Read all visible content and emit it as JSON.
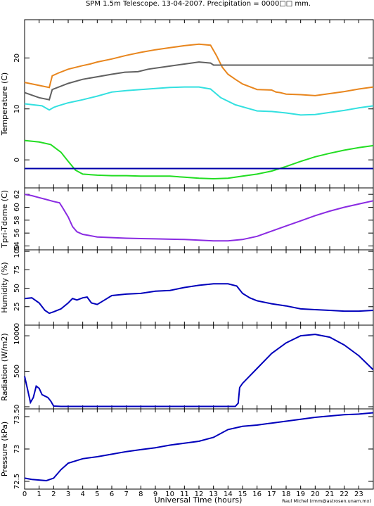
{
  "title": "SPM 1.5m Telescope. 13-04-2007. Precipitation = 0000□□ mm.",
  "xlabel": "Universal Time (hours)",
  "credit": "Raul Michel (rmm@astrosen.unam.mx)",
  "x_ticks": [
    "0",
    "1",
    "2",
    "3",
    "4",
    "5",
    "6",
    "7",
    "8",
    "9",
    "10",
    "11",
    "12",
    "13",
    "14",
    "15",
    "16",
    "17",
    "18",
    "19",
    "20",
    "21",
    "22",
    "23"
  ],
  "chart_data": [
    {
      "type": "scatter",
      "ylabel": "Temperature (C)",
      "xlim": [
        0,
        24
      ],
      "ylim": [
        -5.5,
        27.5
      ],
      "y_ticks": [
        0,
        10,
        20
      ],
      "series": [
        {
          "color": "#e8861e",
          "x": [
            0,
            1,
            1.7,
            1.9,
            2.3,
            3,
            4,
            4.5,
            5,
            6,
            7,
            8,
            9,
            10,
            11,
            12,
            12.8,
            13.2,
            13.6,
            14,
            14.5,
            15,
            16,
            17,
            17.3,
            17.6,
            18,
            19,
            20,
            21,
            22,
            23,
            24
          ],
          "y": [
            15.2,
            14.6,
            14.2,
            16.5,
            17.0,
            17.8,
            18.5,
            18.8,
            19.2,
            19.8,
            20.5,
            21.1,
            21.6,
            22.0,
            22.4,
            22.7,
            22.5,
            20.5,
            18.2,
            16.8,
            15.8,
            14.9,
            13.8,
            13.7,
            13.3,
            13.2,
            12.9,
            12.8,
            12.6,
            13.0,
            13.4,
            13.9,
            14.3
          ]
        },
        {
          "color": "#606060",
          "x": [
            0,
            1,
            1.7,
            1.9,
            3,
            4,
            5,
            6,
            6.9,
            7.8,
            8.5,
            10,
            11,
            12,
            12.8,
            13,
            24
          ],
          "y": [
            13.2,
            12.2,
            11.8,
            13.8,
            15.0,
            15.8,
            16.3,
            16.8,
            17.2,
            17.3,
            17.8,
            18.4,
            18.8,
            19.2,
            19.0,
            18.6,
            18.6
          ]
        },
        {
          "color": "#33e0e0",
          "x": [
            0,
            1.2,
            1.7,
            2,
            2.3,
            3,
            4,
            5,
            6,
            7,
            8,
            9,
            10,
            11,
            12,
            12.8,
            13.5,
            14.5,
            15.5,
            16,
            17,
            18,
            19,
            20,
            21,
            22,
            23,
            24
          ],
          "y": [
            11.0,
            10.6,
            9.8,
            10.3,
            10.6,
            11.2,
            11.8,
            12.5,
            13.3,
            13.6,
            13.8,
            14.0,
            14.2,
            14.3,
            14.3,
            13.9,
            12.2,
            10.8,
            10.0,
            9.6,
            9.5,
            9.2,
            8.8,
            8.9,
            9.3,
            9.7,
            10.2,
            10.6
          ]
        },
        {
          "color": "#22dd22",
          "x": [
            0,
            1,
            1.8,
            2.5,
            3,
            3.5,
            4,
            5,
            6,
            7,
            8,
            9,
            10,
            11,
            12,
            13,
            14,
            15,
            16,
            17,
            18,
            19,
            20,
            21,
            22,
            23,
            24
          ],
          "y": [
            3.8,
            3.5,
            3.0,
            1.5,
            -0.3,
            -2.0,
            -2.8,
            -3.0,
            -3.1,
            -3.1,
            -3.2,
            -3.2,
            -3.2,
            -3.4,
            -3.6,
            -3.7,
            -3.6,
            -3.2,
            -2.8,
            -2.2,
            -1.3,
            -0.3,
            0.6,
            1.3,
            1.9,
            2.4,
            2.8
          ]
        },
        {
          "color": "#0000aa",
          "x": [
            0,
            24
          ],
          "y": [
            -1.7,
            -1.7
          ]
        }
      ]
    },
    {
      "type": "line",
      "ylabel": "Tpri-Tdome (C)",
      "xlim": [
        0,
        24
      ],
      "ylim": [
        53.4,
        63.0
      ],
      "y_ticks": [
        54,
        56,
        58,
        60,
        62
      ],
      "series": [
        {
          "color": "#8a2be2",
          "x": [
            0,
            0.5,
            1,
            1.5,
            2,
            2.4,
            2.6,
            3,
            3.3,
            3.6,
            4,
            4.5,
            5,
            6,
            7,
            8,
            9,
            10,
            11,
            12,
            13,
            14,
            15,
            16,
            17,
            18,
            19,
            20,
            21,
            22,
            23,
            24
          ],
          "y": [
            62.0,
            61.8,
            61.5,
            61.2,
            60.9,
            60.7,
            60.0,
            58.5,
            57.0,
            56.2,
            55.8,
            55.6,
            55.4,
            55.3,
            55.2,
            55.15,
            55.1,
            55.05,
            55.0,
            54.9,
            54.8,
            54.8,
            55.0,
            55.5,
            56.3,
            57.1,
            57.9,
            58.7,
            59.4,
            60.0,
            60.5,
            61.0
          ]
        }
      ]
    },
    {
      "type": "line",
      "ylabel": "Humidity (%)",
      "xlim": [
        0,
        24
      ],
      "ylim": [
        0,
        102
      ],
      "y_ticks": [
        "0",
        "25",
        "50",
        "75",
        "100"
      ],
      "series": [
        {
          "color": "#0000bb",
          "x": [
            0,
            0.5,
            1,
            1.4,
            1.7,
            2,
            2.5,
            3,
            3.3,
            3.6,
            4,
            4.3,
            4.6,
            5,
            5.5,
            6,
            7,
            8,
            9,
            10,
            11,
            12,
            13,
            14,
            14.6,
            15,
            15.5,
            16,
            17,
            18,
            19,
            20,
            21,
            22,
            23,
            24
          ],
          "y": [
            36,
            37,
            30,
            20,
            16,
            18,
            22,
            30,
            36,
            34,
            37,
            38,
            30,
            28,
            34,
            40,
            42,
            43,
            46,
            47,
            51,
            54,
            56,
            56,
            53,
            43,
            37,
            33,
            29,
            26,
            22,
            21,
            20,
            19,
            19,
            20
          ]
        }
      ]
    },
    {
      "type": "line",
      "ylabel": "Radiation (W/m2)",
      "xlim": [
        0,
        24
      ],
      "ylim": [
        -30,
        1150
      ],
      "y_ticks": [
        "0",
        "500",
        "1000"
      ],
      "series": [
        {
          "color": "#0000bb",
          "x": [
            0,
            0.2,
            0.4,
            0.6,
            0.8,
            1,
            1.2,
            1.4,
            1.6,
            1.8,
            2,
            2.5,
            3,
            5,
            10,
            14.5,
            14.7,
            14.8,
            15,
            16,
            17,
            18,
            19,
            20,
            21,
            22,
            23,
            24
          ],
          "y": [
            430,
            250,
            60,
            130,
            290,
            260,
            170,
            150,
            130,
            80,
            10,
            5,
            5,
            5,
            5,
            5,
            50,
            270,
            330,
            540,
            750,
            900,
            1000,
            1020,
            980,
            870,
            720,
            520
          ]
        }
      ]
    },
    {
      "type": "line",
      "ylabel": "Pressure (kPa)",
      "xlim": [
        0,
        24
      ],
      "ylim": [
        72.38,
        73.62
      ],
      "y_ticks": [
        "72.5",
        "73",
        "73.5"
      ],
      "series": [
        {
          "color": "#0000bb",
          "x": [
            0,
            0.5,
            1,
            1.5,
            2,
            2.5,
            3,
            4,
            5,
            6,
            7,
            8,
            9,
            10,
            11,
            12,
            13,
            14,
            15,
            16,
            17,
            18,
            19,
            20,
            21,
            22,
            23,
            24
          ],
          "y": [
            72.55,
            72.53,
            72.52,
            72.51,
            72.55,
            72.68,
            72.78,
            72.85,
            72.88,
            72.92,
            72.96,
            72.99,
            73.02,
            73.06,
            73.09,
            73.12,
            73.18,
            73.3,
            73.35,
            73.37,
            73.4,
            73.43,
            73.46,
            73.49,
            73.51,
            73.53,
            73.54,
            73.56
          ]
        }
      ]
    }
  ]
}
